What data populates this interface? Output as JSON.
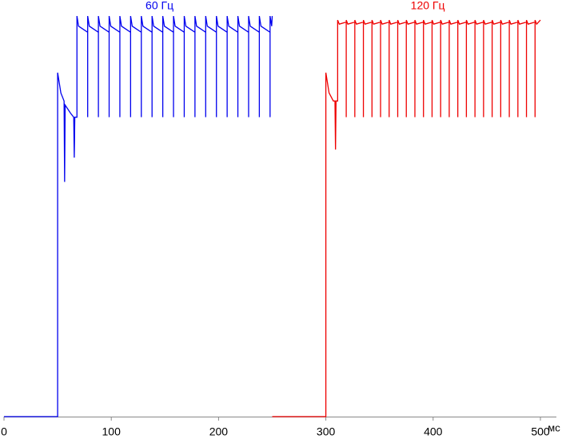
{
  "chart_data": {
    "type": "line",
    "x_label": "мс",
    "xlim": [
      0,
      500
    ],
    "xticks": [
      0,
      100,
      200,
      300,
      400,
      500
    ],
    "ylim": [
      0,
      100
    ],
    "grid": false,
    "series": [
      {
        "name": "60 Гц",
        "color": "#0000ee",
        "x": [
          0,
          50,
          50,
          53,
          56,
          56.5,
          57,
          62,
          65,
          65.5,
          66,
          68,
          68,
          69.5,
          78,
          78,
          78,
          79.5,
          88,
          88,
          88,
          89.5,
          98,
          98,
          98,
          99.5,
          108,
          108,
          108,
          109.5,
          118,
          118,
          118,
          119.5,
          128,
          128,
          128,
          129.5,
          138,
          138,
          138,
          139.5,
          148,
          148,
          148,
          149.5,
          158,
          158,
          158,
          159.5,
          168,
          168,
          168,
          169.5,
          178,
          178,
          178,
          179.5,
          188,
          188,
          188,
          189.5,
          198,
          198,
          198,
          199.5,
          208,
          208,
          208,
          209.5,
          218,
          218,
          218,
          219.5,
          228,
          228,
          228,
          229.5,
          238,
          238,
          238,
          239.5,
          248,
          248,
          248,
          249.5,
          250
        ],
        "values": [
          0,
          0,
          85,
          80,
          78,
          58,
          77,
          75,
          74,
          64,
          74,
          74,
          99,
          96.5,
          95,
          74,
          99,
          96.5,
          95,
          74,
          99,
          96.5,
          95,
          74,
          99,
          96.5,
          95,
          74,
          99,
          96.5,
          95,
          74,
          99,
          96.5,
          95,
          74,
          99,
          96.5,
          95,
          74,
          99,
          96.5,
          95,
          74,
          99,
          96.5,
          95,
          74,
          99,
          96.5,
          95,
          74,
          99,
          96.5,
          95,
          74,
          99,
          96.5,
          95,
          74,
          99,
          96.5,
          95,
          74,
          99,
          96.5,
          95,
          74,
          99,
          96.5,
          95,
          74,
          99,
          96.5,
          95,
          74,
          99,
          96.5,
          95,
          74,
          99,
          96.5,
          95,
          74,
          99,
          96.5,
          99
        ]
      },
      {
        "name": "120 Гц",
        "color": "#ee0000",
        "x": [
          250,
          300,
          300,
          303,
          307,
          308.5,
          309,
          309.5,
          311,
          311,
          312.5,
          319,
          319,
          319,
          320.5,
          327,
          327,
          327,
          328.5,
          335,
          335,
          335,
          336.5,
          343,
          343,
          343,
          344.5,
          351,
          351,
          351,
          352.5,
          359,
          359,
          359,
          360.5,
          367,
          367,
          367,
          368.5,
          375,
          375,
          375,
          376.5,
          383,
          383,
          383,
          384.5,
          391,
          391,
          391,
          392.5,
          399,
          399,
          399,
          400.5,
          407,
          407,
          407,
          408.5,
          415,
          415,
          415,
          416.5,
          423,
          423,
          423,
          424.5,
          431,
          431,
          431,
          432.5,
          439,
          439,
          439,
          440.5,
          447,
          447,
          447,
          448.5,
          455,
          455,
          455,
          456.5,
          463,
          463,
          463,
          464.5,
          471,
          471,
          471,
          472.5,
          479,
          479,
          479,
          480.5,
          487,
          487,
          487,
          488.5,
          495,
          495,
          495,
          496.5,
          500
        ],
        "values": [
          0,
          0,
          85,
          80,
          78,
          78,
          66,
          78,
          78,
          98,
          97,
          97.5,
          74,
          98,
          97,
          97.5,
          74,
          98,
          97,
          97.5,
          74,
          98,
          97,
          97.5,
          74,
          98,
          97,
          97.5,
          74,
          98,
          97,
          97.5,
          74,
          98,
          97,
          97.5,
          74,
          98,
          97,
          97.5,
          74,
          98,
          97,
          97.5,
          74,
          98,
          97,
          97.5,
          74,
          98,
          97,
          97.5,
          74,
          98,
          97,
          97.5,
          74,
          98,
          97,
          97.5,
          74,
          98,
          97,
          97.5,
          74,
          98,
          97,
          97.5,
          74,
          98,
          97,
          97.5,
          74,
          98,
          97,
          97.5,
          74,
          98,
          97,
          97.5,
          74,
          98,
          97,
          97.5,
          74,
          98,
          97,
          97.5,
          74,
          98,
          97,
          97.5,
          74,
          98,
          97,
          97.5,
          74,
          98,
          97,
          97.5,
          74,
          98,
          97,
          98
        ]
      }
    ]
  }
}
